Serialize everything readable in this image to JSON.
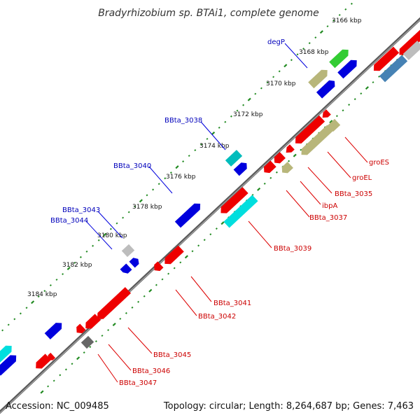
{
  "title": "Bradyrhizobium sp. BTAi1, complete genome",
  "accession": "Accession: NC_009485",
  "topology": "Topology: circular; Length: 8,264,687 bp; Genes: 7,463",
  "colors": {
    "red": "#ee0000",
    "blue": "#0000dd",
    "cyan": "#00dede",
    "teal": "#00bcbc",
    "green": "#33cc33",
    "khaki": "#b8b67a",
    "steelblue": "#4682b4",
    "silver": "#bdbdbd",
    "gray": "#666666",
    "label_blue": "#0000bb",
    "label_red": "#cc0000",
    "tick_green": "#228b22",
    "backbone": "#777777"
  },
  "kbp_labels": [
    "3166 kbp",
    "3168 kbp",
    "3170 kbp",
    "3172 kbp",
    "3174 kbp",
    "3176 kbp",
    "3178 kbp",
    "3180 kbp",
    "3182 kbp",
    "3184 kbp"
  ],
  "gene_labels_blue": [
    "degP",
    "BBta_3038",
    "BBta_3040",
    "BBta_3043",
    "BBta_3044"
  ],
  "gene_labels_red": [
    "groES",
    "groEL",
    "BBta_3035",
    "ibpA",
    "BBta_3037",
    "BBta_3039",
    "BBta_3041",
    "BBta_3042",
    "BBta_3045",
    "BBta_3046",
    "BBta_3047"
  ]
}
